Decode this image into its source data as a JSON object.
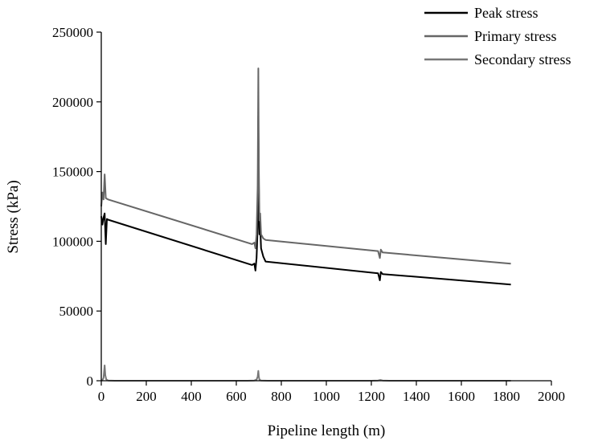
{
  "chart_data": {
    "type": "line",
    "xlabel": "Pipeline length (m)",
    "ylabel": "Stress (kPa)",
    "xlim": [
      0,
      2000
    ],
    "ylim": [
      0,
      250000
    ],
    "xticks": [
      0,
      200,
      400,
      600,
      800,
      1000,
      1200,
      1400,
      1600,
      1800,
      2000
    ],
    "yticks": [
      0,
      50000,
      100000,
      150000,
      200000,
      250000
    ],
    "grid": false,
    "legend_position": "top-right",
    "series": [
      {
        "name": "Peak stress",
        "color": "#000000",
        "x": [
          0,
          5,
          10,
          15,
          20,
          25,
          30,
          670,
          680,
          685,
          690,
          695,
          698,
          700,
          703,
          706,
          710,
          720,
          730,
          1230,
          1238,
          1242,
          1250,
          1820
        ],
        "y": [
          118000,
          112000,
          117000,
          120000,
          98000,
          116000,
          115500,
          83000,
          84000,
          79000,
          88000,
          110000,
          190000,
          140000,
          105000,
          112000,
          95000,
          89000,
          85500,
          77000,
          72000,
          78000,
          76500,
          69000
        ]
      },
      {
        "name": "Primary stress",
        "color": "#666666",
        "x": [
          0,
          5,
          10,
          15,
          18,
          20,
          25,
          30,
          670,
          680,
          685,
          690,
          695,
          698,
          700,
          703,
          706,
          710,
          720,
          730,
          1230,
          1238,
          1242,
          1250,
          1820
        ],
        "y": [
          125000,
          135000,
          130000,
          148000,
          138000,
          131000,
          130500,
          130000,
          98000,
          99000,
          95000,
          105000,
          140000,
          224000,
          155000,
          115000,
          120000,
          105000,
          102000,
          101000,
          93000,
          88000,
          94000,
          92000,
          84000
        ]
      },
      {
        "name": "Secondary stress",
        "color": "#777777",
        "x": [
          0,
          5,
          10,
          15,
          18,
          22,
          30,
          60,
          650,
          680,
          690,
          695,
          698,
          700,
          703,
          710,
          740,
          1200,
          1230,
          1240,
          1250,
          1280,
          1820
        ],
        "y": [
          0,
          500,
          2000,
          11000,
          4000,
          1000,
          200,
          0,
          0,
          200,
          800,
          3000,
          7000,
          3000,
          800,
          200,
          0,
          0,
          200,
          500,
          200,
          0,
          0
        ]
      }
    ]
  }
}
